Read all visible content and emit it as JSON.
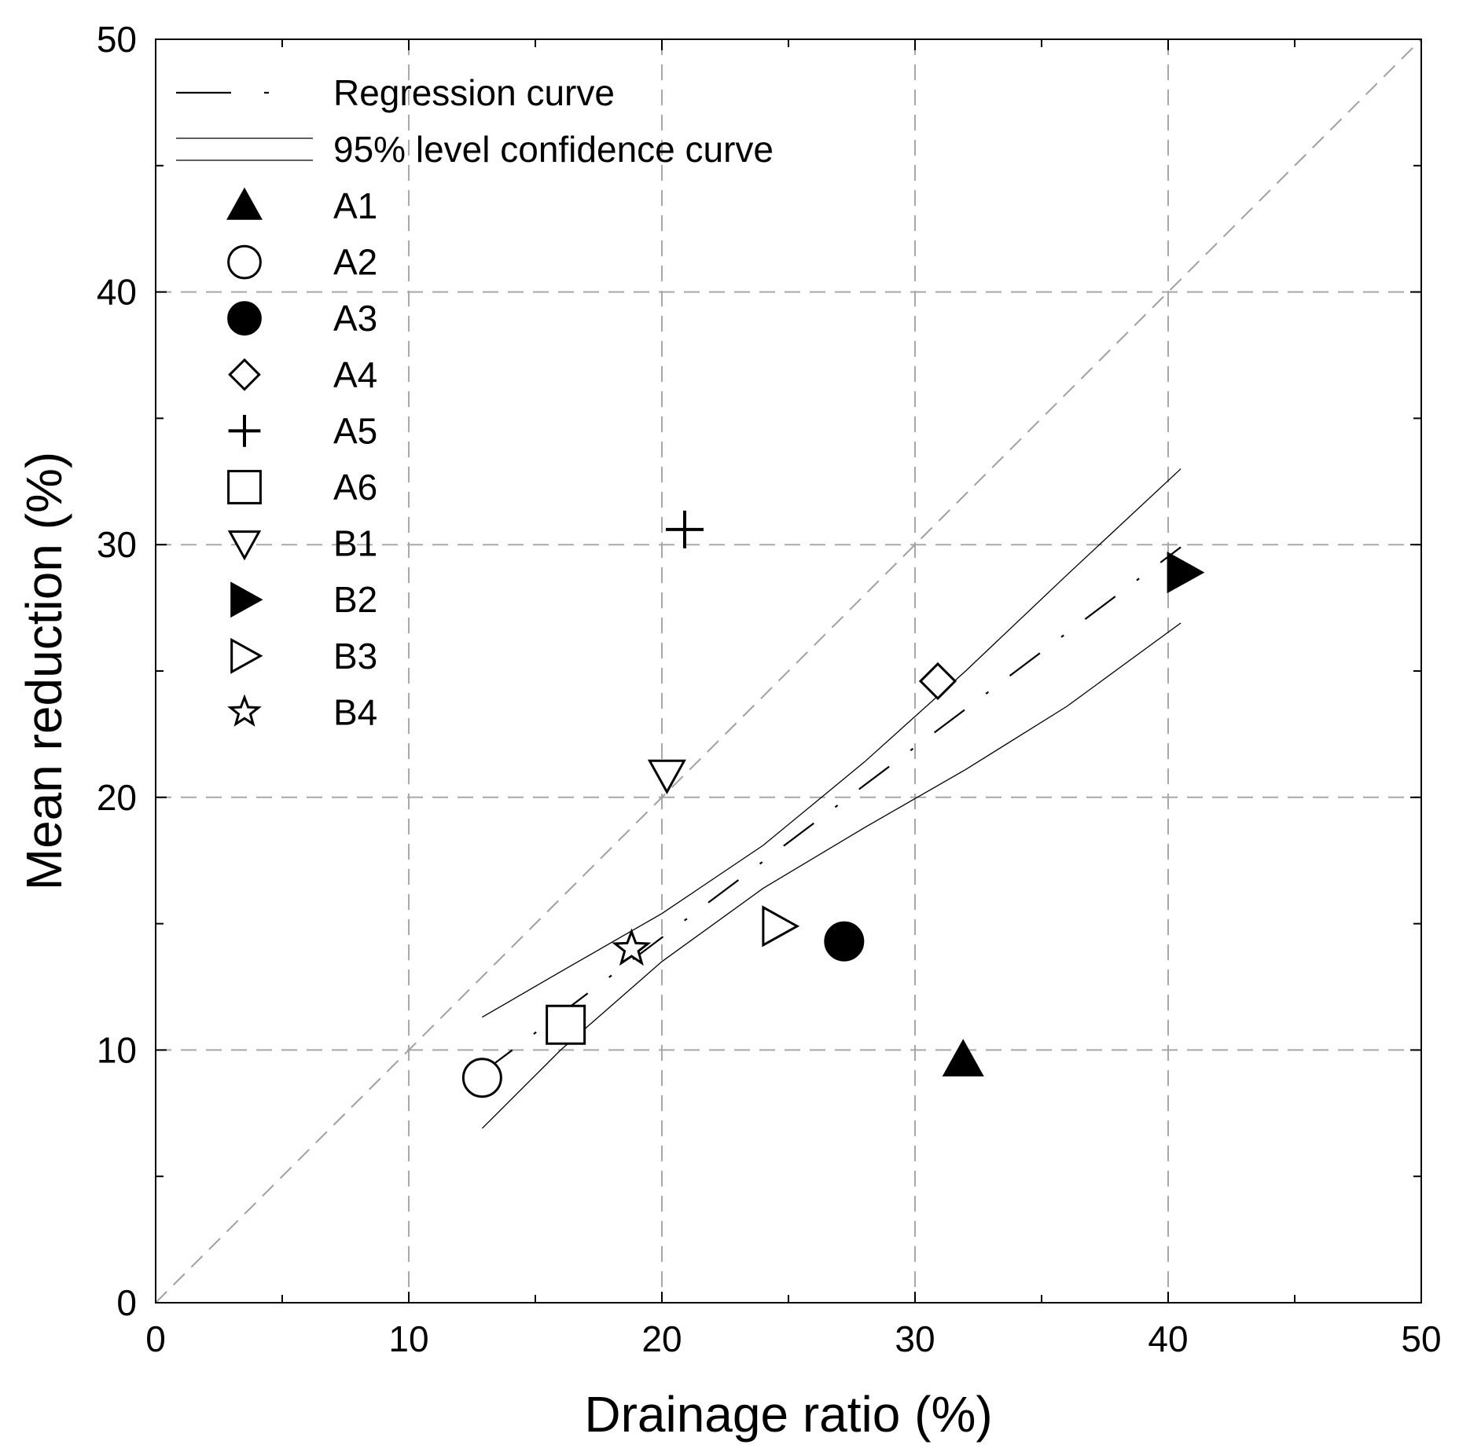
{
  "chart_data": {
    "type": "scatter",
    "xlabel": "Drainage ratio (%)",
    "ylabel": "Mean reduction (%)",
    "xlim": [
      0,
      50
    ],
    "ylim": [
      0,
      50
    ],
    "x_ticks": [
      "0",
      "10",
      "20",
      "30",
      "40",
      "50"
    ],
    "y_ticks": [
      "0",
      "10",
      "20",
      "30",
      "40",
      "50"
    ],
    "grid": true,
    "legend_position": "top-left",
    "reference_line": {
      "name": "1:1 line",
      "style": "dashed-gray",
      "points": [
        [
          0,
          0
        ],
        [
          50,
          50
        ]
      ]
    },
    "regression_curve": {
      "label": "Regression curve",
      "style": "dash-dot",
      "points": [
        [
          12.9,
          9.1
        ],
        [
          40.5,
          29.9
        ]
      ]
    },
    "confidence_curves": {
      "label": "95% level confidence curve",
      "upper": [
        [
          12.9,
          11.3
        ],
        [
          16,
          13.1
        ],
        [
          20,
          15.4
        ],
        [
          24,
          18.1
        ],
        [
          28,
          21.4
        ],
        [
          32,
          25.0
        ],
        [
          36,
          28.8
        ],
        [
          40.5,
          33.0
        ]
      ],
      "lower": [
        [
          12.9,
          6.9
        ],
        [
          16,
          10.0
        ],
        [
          20,
          13.5
        ],
        [
          24,
          16.4
        ],
        [
          28,
          18.8
        ],
        [
          32,
          21.1
        ],
        [
          36,
          23.6
        ],
        [
          40.5,
          26.9
        ]
      ]
    },
    "series": [
      {
        "name": "A1",
        "marker": "triangle-up",
        "filled": true,
        "x": 31.9,
        "y": 9.6
      },
      {
        "name": "A2",
        "marker": "circle",
        "filled": false,
        "x": 12.9,
        "y": 8.9
      },
      {
        "name": "A3",
        "marker": "circle",
        "filled": true,
        "x": 27.2,
        "y": 14.3
      },
      {
        "name": "A4",
        "marker": "diamond",
        "filled": false,
        "x": 30.9,
        "y": 24.6
      },
      {
        "name": "A5",
        "marker": "plus",
        "filled": false,
        "x": 20.9,
        "y": 30.6
      },
      {
        "name": "A6",
        "marker": "square",
        "filled": false,
        "x": 16.2,
        "y": 11.0
      },
      {
        "name": "B1",
        "marker": "triangle-down",
        "filled": false,
        "x": 20.2,
        "y": 20.9
      },
      {
        "name": "B2",
        "marker": "triangle-right",
        "filled": true,
        "x": 40.6,
        "y": 28.9
      },
      {
        "name": "B3",
        "marker": "triangle-right",
        "filled": false,
        "x": 24.6,
        "y": 14.9
      },
      {
        "name": "B4",
        "marker": "star",
        "filled": false,
        "x": 18.8,
        "y": 14.0
      }
    ]
  }
}
